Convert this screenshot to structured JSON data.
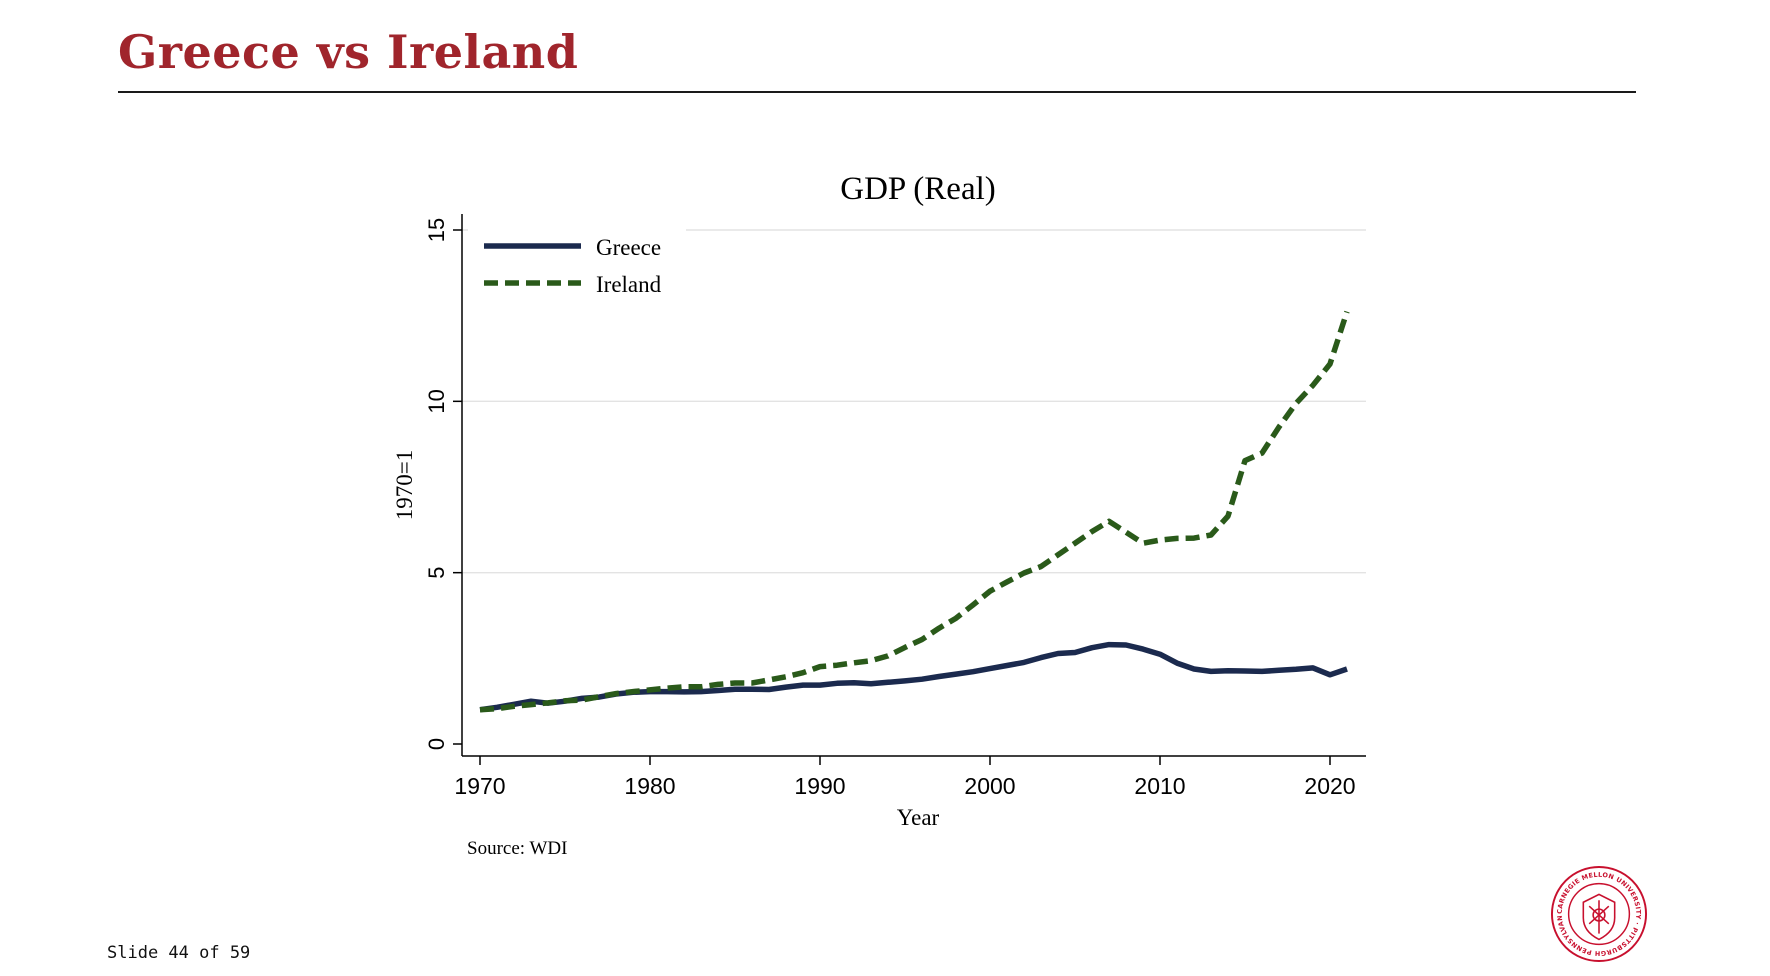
{
  "slide": {
    "title": "Greece vs Ireland",
    "counter": "Slide 44 of 59",
    "logo_text": "CARNEGIE MELLON UNIVERSITY · PITTSBURGH PENNSYLVANIA 1900",
    "colors": {
      "title": "#a0252c",
      "logo": "#c8102e"
    }
  },
  "chart_data": {
    "type": "line",
    "title": "GDP (Real)",
    "xlabel": "Year",
    "ylabel": "1970=1",
    "source": "Source: WDI",
    "xlim": [
      1970,
      2021
    ],
    "ylim": [
      0,
      15
    ],
    "xticks": [
      1970,
      1980,
      1990,
      2000,
      2010,
      2020
    ],
    "yticks": [
      0,
      5,
      10,
      15
    ],
    "grid": "horizontal",
    "legend_position": "top-left",
    "x": [
      1970,
      1971,
      1972,
      1973,
      1974,
      1975,
      1976,
      1977,
      1978,
      1979,
      1980,
      1981,
      1982,
      1983,
      1984,
      1985,
      1986,
      1987,
      1988,
      1989,
      1990,
      1991,
      1992,
      1993,
      1994,
      1995,
      1996,
      1997,
      1998,
      1999,
      2000,
      2001,
      2002,
      2003,
      2004,
      2005,
      2006,
      2007,
      2008,
      2009,
      2010,
      2011,
      2012,
      2013,
      2014,
      2015,
      2016,
      2017,
      2018,
      2019,
      2020,
      2021
    ],
    "series": [
      {
        "name": "Greece",
        "color": "#1b2a4e",
        "style": "solid",
        "values": [
          1.0,
          1.07,
          1.16,
          1.25,
          1.19,
          1.25,
          1.33,
          1.37,
          1.46,
          1.51,
          1.53,
          1.53,
          1.52,
          1.53,
          1.56,
          1.6,
          1.6,
          1.59,
          1.66,
          1.72,
          1.72,
          1.77,
          1.79,
          1.76,
          1.8,
          1.84,
          1.89,
          1.97,
          2.04,
          2.11,
          2.2,
          2.29,
          2.38,
          2.52,
          2.64,
          2.67,
          2.81,
          2.9,
          2.89,
          2.77,
          2.62,
          2.36,
          2.19,
          2.12,
          2.14,
          2.13,
          2.12,
          2.15,
          2.18,
          2.22,
          2.02,
          2.19
        ]
      },
      {
        "name": "Ireland",
        "color": "#2a5a1a",
        "style": "dashed",
        "values": [
          1.0,
          1.03,
          1.1,
          1.15,
          1.2,
          1.26,
          1.28,
          1.38,
          1.47,
          1.53,
          1.58,
          1.63,
          1.67,
          1.67,
          1.74,
          1.78,
          1.78,
          1.87,
          1.96,
          2.08,
          2.26,
          2.3,
          2.37,
          2.43,
          2.57,
          2.82,
          3.05,
          3.38,
          3.67,
          4.06,
          4.46,
          4.73,
          4.99,
          5.18,
          5.52,
          5.86,
          6.2,
          6.5,
          6.18,
          5.86,
          5.95,
          6.0,
          6.01,
          6.1,
          6.65,
          8.27,
          8.49,
          9.25,
          9.94,
          10.47,
          11.09,
          12.62
        ]
      }
    ]
  }
}
